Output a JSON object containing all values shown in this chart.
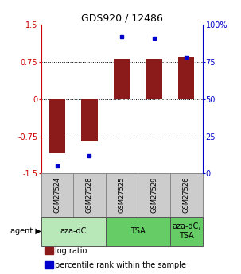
{
  "title": "GDS920 / 12486",
  "samples": [
    "GSM27524",
    "GSM27528",
    "GSM27525",
    "GSM27529",
    "GSM27526"
  ],
  "log_ratio": [
    -1.1,
    -0.85,
    0.82,
    0.82,
    0.85
  ],
  "percentile_rank": [
    5,
    12,
    92,
    91,
    78
  ],
  "bar_color": "#8B1A1A",
  "dot_color": "#0000CC",
  "ylim_left": [
    -1.5,
    1.5
  ],
  "ylim_right": [
    0,
    100
  ],
  "yticks_left": [
    -1.5,
    -0.75,
    0,
    0.75,
    1.5
  ],
  "ytick_labels_left": [
    "-1.5",
    "-0.75",
    "0",
    "0.75",
    "1.5"
  ],
  "yticks_right": [
    0,
    25,
    50,
    75,
    100
  ],
  "ytick_labels_right": [
    "0",
    "25",
    "50",
    "75",
    "100%"
  ],
  "hlines": [
    -0.75,
    0,
    0.75
  ],
  "agent_groups": [
    {
      "label": "aza-dC",
      "span": [
        0,
        2
      ],
      "color": "#b8e8b8"
    },
    {
      "label": "TSA",
      "span": [
        2,
        4
      ],
      "color": "#66cc66"
    },
    {
      "label": "aza-dC,\nTSA",
      "span": [
        4,
        5
      ],
      "color": "#66cc66"
    }
  ],
  "legend_items": [
    {
      "color": "#8B1A1A",
      "label": "log ratio"
    },
    {
      "color": "#0000CC",
      "label": "percentile rank within the sample"
    }
  ],
  "title_fontsize": 9,
  "tick_fontsize": 7,
  "sample_fontsize": 6,
  "agent_fontsize": 7,
  "legend_fontsize": 7,
  "bar_width": 0.5,
  "background_color": "#ffffff",
  "sample_box_fill": "#cccccc"
}
